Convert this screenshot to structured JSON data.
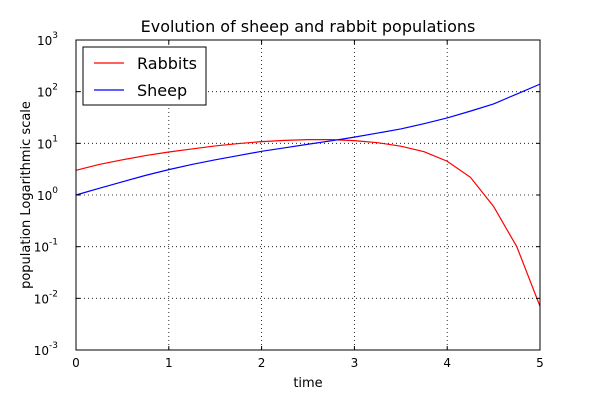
{
  "chart_data": {
    "type": "line",
    "title": "Evolution of sheep and rabbit populations",
    "xlabel": "time",
    "ylabel": "population Logarithmic scale",
    "xlim": [
      0,
      5
    ],
    "ylim": [
      0.001,
      1000
    ],
    "yscale": "log",
    "grid": true,
    "legend_position": "top-left",
    "x_ticks": [
      "0",
      "1",
      "2",
      "3",
      "4",
      "5"
    ],
    "y_ticks": [
      {
        "base": "10",
        "exp": "-3"
      },
      {
        "base": "10",
        "exp": "-2"
      },
      {
        "base": "10",
        "exp": "-1"
      },
      {
        "base": "10",
        "exp": "0"
      },
      {
        "base": "10",
        "exp": "1"
      },
      {
        "base": "10",
        "exp": "2"
      },
      {
        "base": "10",
        "exp": "3"
      }
    ],
    "x": [
      0,
      0.25,
      0.5,
      0.75,
      1,
      1.25,
      1.5,
      1.75,
      2,
      2.25,
      2.5,
      2.75,
      3,
      3.25,
      3.5,
      3.75,
      4,
      4.25,
      4.5,
      4.75,
      5
    ],
    "series": [
      {
        "name": "Rabbits",
        "color": "#ff0000",
        "values": [
          3.0,
          3.9,
          4.8,
          5.8,
          6.8,
          7.8,
          8.9,
          9.9,
          10.8,
          11.4,
          11.8,
          11.8,
          11.3,
          10.3,
          8.8,
          6.9,
          4.5,
          2.2,
          0.6,
          0.1,
          0.007
        ]
      },
      {
        "name": "Sheep",
        "color": "#0000ff",
        "values": [
          1.0,
          1.35,
          1.8,
          2.4,
          3.1,
          3.9,
          4.8,
          5.8,
          7.0,
          8.2,
          9.6,
          11.2,
          13.2,
          15.8,
          19.0,
          24.0,
          31.0,
          42.0,
          58.0,
          90.0,
          140.0
        ]
      }
    ]
  }
}
